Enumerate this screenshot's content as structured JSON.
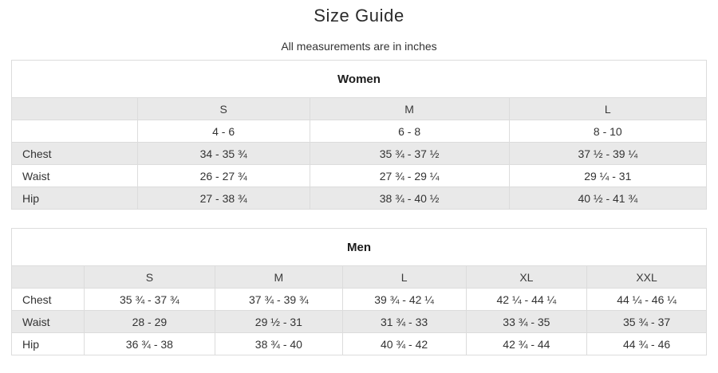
{
  "page": {
    "title": "Size Guide",
    "subtitle": "All measurements are in inches"
  },
  "colors": {
    "row_shade": "#e9e9e9",
    "table_border": "#dcdcdc",
    "body_text": "#333333",
    "heading_text": "#1c1c1c"
  },
  "tables": [
    {
      "id": "women",
      "title": "Women",
      "columns": [
        "",
        "S",
        "M",
        "L"
      ],
      "rows": [
        {
          "label": "",
          "values": [
            "4 - 6",
            "6 - 8",
            "8 - 10"
          ]
        },
        {
          "label": "Chest",
          "values": [
            "34 - 35 ¾",
            "35 ¾ - 37 ½",
            "37 ½ - 39 ¼"
          ]
        },
        {
          "label": "Waist",
          "values": [
            "26 - 27 ¾",
            "27 ¾ - 29 ¼",
            "29 ¼ - 31"
          ]
        },
        {
          "label": "Hip",
          "values": [
            "27 - 38 ¾",
            "38 ¾ - 40 ½",
            "40 ½ - 41 ¾"
          ]
        }
      ]
    },
    {
      "id": "men",
      "title": "Men",
      "columns": [
        "",
        "S",
        "M",
        "L",
        "XL",
        "XXL"
      ],
      "rows": [
        {
          "label": "Chest",
          "values": [
            "35 ¾ - 37 ¾",
            "37 ¾ - 39 ¾",
            "39 ¾ - 42 ¼",
            "42 ¼ - 44 ¼",
            "44 ¼ - 46 ¼"
          ]
        },
        {
          "label": "Waist",
          "values": [
            "28 - 29",
            "29 ½ - 31",
            "31 ¾ - 33",
            "33 ¾ - 35",
            "35 ¾ - 37"
          ]
        },
        {
          "label": "Hip",
          "values": [
            "36 ¾ - 38",
            "38 ¾ - 40",
            "40 ¾ - 42",
            "42 ¾ - 44",
            "44 ¾ - 46"
          ]
        }
      ]
    }
  ]
}
